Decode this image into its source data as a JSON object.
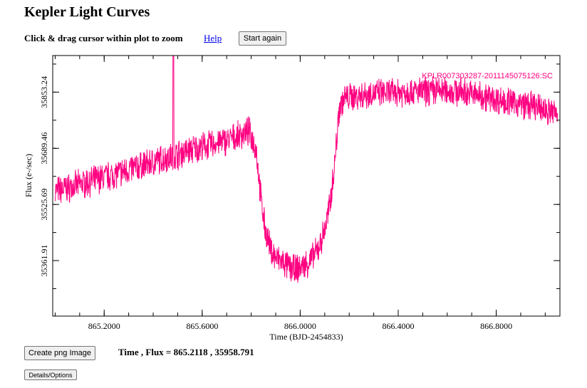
{
  "header": {
    "title": "Kepler Light Curves",
    "instructions": "Click & drag cursor within plot to zoom",
    "help_label": "Help",
    "start_again_label": "Start again"
  },
  "footer": {
    "create_png_label": "Create png Image",
    "readout": "Time , Flux = 865.2118 , 35958.791",
    "details_label": "Details/Options"
  },
  "colors": {
    "series": "#ff0080",
    "axis": "#000000"
  },
  "chart_data": {
    "type": "line",
    "title": "",
    "xlabel": "Time (BJD-2454833)",
    "ylabel": "Flux (e-/sec)",
    "xlim": [
      864.99,
      867.06
    ],
    "ylim": [
      35200,
      35960
    ],
    "x_ticks": [
      "865.2000",
      "865.6000",
      "866.0000",
      "866.4000",
      "866.8000"
    ],
    "x_tick_values": [
      865.2,
      865.6,
      866.0,
      866.4,
      866.8
    ],
    "y_ticks": [
      "35361.91",
      "35525.69",
      "35689.46",
      "35853.24"
    ],
    "y_tick_values": [
      35361.91,
      35525.69,
      35689.46,
      35853.24
    ],
    "grid": false,
    "legend": "none",
    "series": [
      {
        "name": "KPLR007303287-2011145075126:SC",
        "x": [
          865.0,
          865.05,
          865.1,
          865.15,
          865.2,
          865.25,
          865.3,
          865.35,
          865.4,
          865.45,
          865.5,
          865.55,
          865.6,
          865.65,
          865.7,
          865.75,
          865.79,
          865.82,
          865.84,
          865.86,
          865.88,
          865.9,
          865.92,
          865.95,
          865.98,
          866.01,
          866.04,
          866.07,
          866.1,
          866.12,
          866.14,
          866.16,
          866.18,
          866.2,
          866.25,
          866.3,
          866.35,
          866.4,
          866.45,
          866.5,
          866.55,
          866.6,
          866.65,
          866.7,
          866.75,
          866.8,
          866.85,
          866.9,
          866.95,
          867.0,
          867.05
        ],
        "values": [
          35565,
          35573,
          35584,
          35594,
          35605,
          35614,
          35627,
          35638,
          35649,
          35661,
          35671,
          35684,
          35693,
          35703,
          35712,
          35725,
          35740,
          35690,
          35540,
          35440,
          35395,
          35370,
          35360,
          35345,
          35335,
          35345,
          35360,
          35390,
          35450,
          35520,
          35640,
          35810,
          35835,
          35838,
          35845,
          35850,
          35850,
          35853,
          35855,
          35854,
          35858,
          35856,
          35855,
          35848,
          35840,
          35832,
          35825,
          35818,
          35812,
          35800,
          35792
        ]
      }
    ],
    "annotations": [
      "KPLR007303287-2011145075126:SC"
    ]
  }
}
